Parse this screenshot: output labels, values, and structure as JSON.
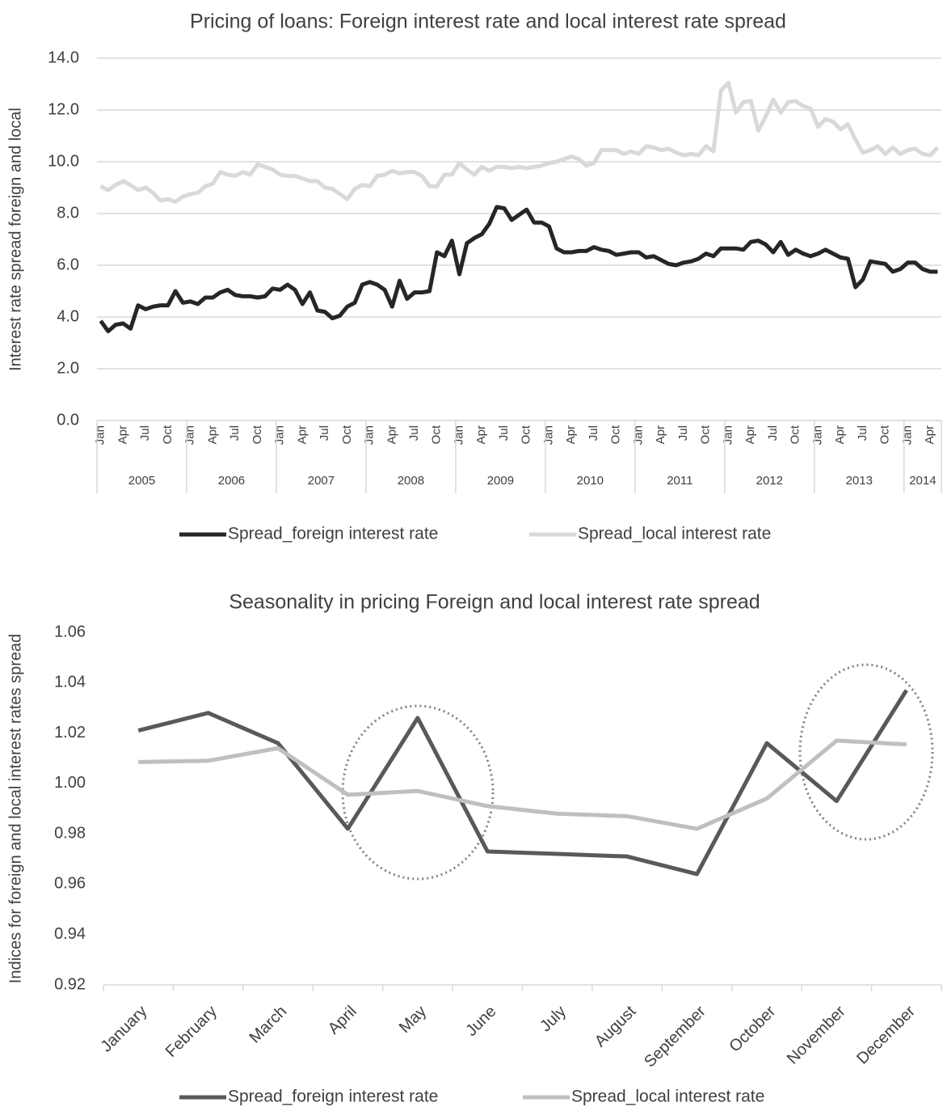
{
  "chart_data": [
    {
      "type": "line",
      "title": "Pricing of loans: Foreign interest rate and local interest rate spread",
      "y_axis_label": "Interest rate spread foreign and local",
      "categories": [
        "Jan",
        null,
        null,
        "Apr",
        null,
        null,
        "Jul",
        null,
        null,
        "Oct",
        null,
        null,
        "Jan",
        null,
        null,
        "Apr",
        null,
        null,
        "Jul",
        null,
        null,
        "Oct",
        null,
        null,
        "Jan",
        null,
        null,
        "Apr",
        null,
        null,
        "Jul",
        null,
        null,
        "Oct",
        null,
        null,
        "Jan",
        null,
        null,
        "Apr",
        null,
        null,
        "Jul",
        null,
        null,
        "Oct",
        null,
        null,
        "Jan",
        null,
        null,
        "Apr",
        null,
        null,
        "Jul",
        null,
        null,
        "Oct",
        null,
        null,
        "Jan",
        null,
        null,
        "Apr",
        null,
        null,
        "Jul",
        null,
        null,
        "Oct",
        null,
        null,
        "Jan",
        null,
        null,
        "Apr",
        null,
        null,
        "Jul",
        null,
        null,
        "Oct",
        null,
        null,
        "Jan",
        null,
        null,
        "Apr",
        null,
        null,
        "Jul",
        null,
        null,
        "Oct",
        null,
        null,
        "Jan",
        null,
        null,
        "Apr",
        null,
        null,
        "Jul",
        null,
        null,
        "Oct",
        null,
        null,
        "Jan",
        null,
        null,
        "Apr",
        null
      ],
      "category_groups": [
        "2005",
        "2006",
        "2007",
        "2008",
        "2009",
        "2010",
        "2011",
        "2012",
        "2013",
        "2014"
      ],
      "series": [
        {
          "name": "Spread_foreign interest rate",
          "color": "#262626",
          "values": [
            3.85,
            3.45,
            3.7,
            3.75,
            3.55,
            4.45,
            4.3,
            4.4,
            4.45,
            4.45,
            5.0,
            4.55,
            4.6,
            4.5,
            4.75,
            4.75,
            4.95,
            5.05,
            4.85,
            4.8,
            4.8,
            4.75,
            4.8,
            5.1,
            5.05,
            5.25,
            5.05,
            4.5,
            4.95,
            4.25,
            4.2,
            3.95,
            4.05,
            4.4,
            4.55,
            5.25,
            5.35,
            5.25,
            5.05,
            4.4,
            5.4,
            4.7,
            4.95,
            4.95,
            5.0,
            6.5,
            6.35,
            6.95,
            5.65,
            6.85,
            7.05,
            7.2,
            7.6,
            8.25,
            8.2,
            7.75,
            7.95,
            8.15,
            7.65,
            7.65,
            7.5,
            6.65,
            6.5,
            6.5,
            6.55,
            6.55,
            6.7,
            6.6,
            6.55,
            6.4,
            6.45,
            6.5,
            6.5,
            6.3,
            6.35,
            6.2,
            6.05,
            6.0,
            6.1,
            6.15,
            6.25,
            6.45,
            6.35,
            6.65,
            6.65,
            6.65,
            6.6,
            6.9,
            6.95,
            6.8,
            6.5,
            6.9,
            6.4,
            6.6,
            6.45,
            6.35,
            6.45,
            6.6,
            6.45,
            6.3,
            6.25,
            5.15,
            5.45,
            6.15,
            6.1,
            6.05,
            5.75,
            5.85,
            6.1,
            6.1,
            5.85,
            5.75,
            5.75
          ]
        },
        {
          "name": "Spread_local interest rate",
          "color": "#d9d9d9",
          "values": [
            9.05,
            8.9,
            9.1,
            9.25,
            9.1,
            8.9,
            9.0,
            8.8,
            8.5,
            8.55,
            8.45,
            8.65,
            8.75,
            8.8,
            9.05,
            9.15,
            9.6,
            9.5,
            9.45,
            9.6,
            9.5,
            9.9,
            9.8,
            9.7,
            9.5,
            9.45,
            9.45,
            9.35,
            9.25,
            9.25,
            9.0,
            8.95,
            8.75,
            8.55,
            8.95,
            9.1,
            9.05,
            9.45,
            9.5,
            9.65,
            9.55,
            9.6,
            9.6,
            9.45,
            9.05,
            9.05,
            9.5,
            9.5,
            9.95,
            9.7,
            9.5,
            9.8,
            9.65,
            9.8,
            9.8,
            9.75,
            9.8,
            9.75,
            9.8,
            9.85,
            9.95,
            10.0,
            10.1,
            10.2,
            10.1,
            9.85,
            9.95,
            10.45,
            10.45,
            10.45,
            10.3,
            10.4,
            10.3,
            10.6,
            10.55,
            10.45,
            10.5,
            10.35,
            10.25,
            10.3,
            10.25,
            10.6,
            10.4,
            12.75,
            13.05,
            11.9,
            12.3,
            12.35,
            11.2,
            11.75,
            12.4,
            11.9,
            12.3,
            12.35,
            12.15,
            12.05,
            11.35,
            11.65,
            11.55,
            11.25,
            11.45,
            10.85,
            10.35,
            10.45,
            10.6,
            10.3,
            10.55,
            10.3,
            10.45,
            10.5,
            10.3,
            10.25,
            10.55
          ]
        }
      ],
      "ylim": [
        0,
        14
      ],
      "yticks": [
        {
          "value": 0,
          "label": "0.0"
        },
        {
          "value": 2,
          "label": "2.0"
        },
        {
          "value": 4,
          "label": "4.0"
        },
        {
          "value": 6,
          "label": "6.0"
        },
        {
          "value": 8,
          "label": "8.0"
        },
        {
          "value": 10,
          "label": "10.0"
        },
        {
          "value": 12,
          "label": "12.0"
        },
        {
          "value": 14,
          "label": "14.0"
        }
      ],
      "grid": true,
      "legend": "bottom"
    },
    {
      "type": "line",
      "title": "Seasonality in pricing  Foreign and local interest rate spread",
      "y_axis_label": "Indices for foreign and local interest rates spread",
      "categories": [
        "January",
        "February",
        "March",
        "April",
        "May",
        "June",
        "July",
        "August",
        "September",
        "October",
        "November",
        "December"
      ],
      "series": [
        {
          "name": "Spread_foreign interest rate",
          "color": "#595959",
          "values": [
            1.021,
            1.028,
            1.016,
            0.982,
            1.026,
            0.973,
            0.972,
            0.971,
            0.964,
            1.016,
            0.993,
            1.037
          ]
        },
        {
          "name": "Spread_local interest rate",
          "color": "#bfbfbf",
          "values": [
            1.0085,
            1.009,
            1.014,
            0.9955,
            0.997,
            0.991,
            0.988,
            0.987,
            0.982,
            0.994,
            1.017,
            1.0155
          ]
        }
      ],
      "ylim": [
        0.92,
        1.06
      ],
      "yticks": [
        0.92,
        0.94,
        0.96,
        0.98,
        {
          "value": 1,
          "label": "1.00"
        },
        1.02,
        1.04,
        1.06
      ],
      "grid": false,
      "legend": "bottom"
    }
  ]
}
